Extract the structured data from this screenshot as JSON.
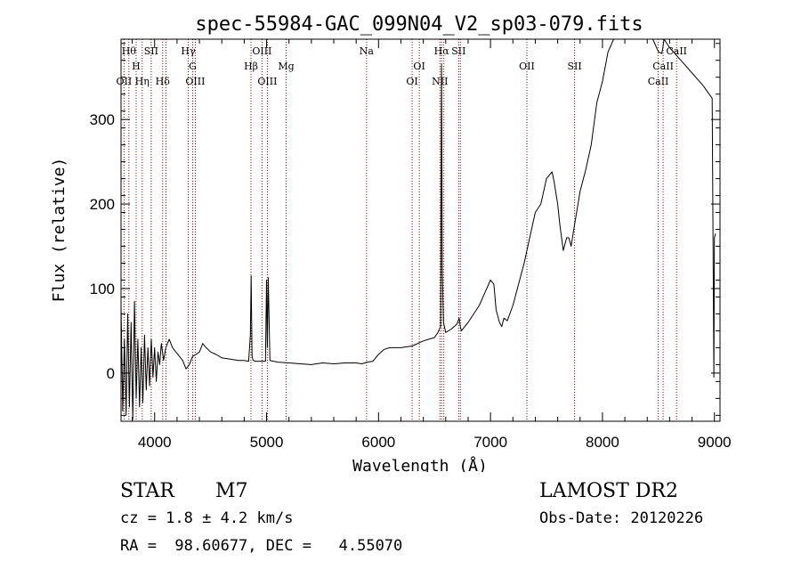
{
  "chart_data": {
    "type": "line",
    "title": "spec-55984-GAC_099N04_V2_sp03-079.fits",
    "xlabel": "Wavelength (Å)",
    "ylabel": "Flux (relative)",
    "xlim": [
      3700,
      9050
    ],
    "ylim": [
      -57,
      395
    ],
    "xticks": [
      4000,
      5000,
      6000,
      7000,
      8000,
      9000
    ],
    "yticks": [
      0,
      100,
      200,
      300
    ],
    "grid": false,
    "series": [
      {
        "x": [
          3700,
          3715,
          3730,
          3745,
          3760,
          3775,
          3790,
          3805,
          3820,
          3835,
          3850,
          3865,
          3880,
          3895,
          3910,
          3925,
          3940,
          3955,
          3970,
          3985,
          4000,
          4015,
          4030,
          4045,
          4060,
          4080,
          4100,
          4130,
          4160,
          4190,
          4220,
          4250,
          4280,
          4310,
          4340,
          4370,
          4400,
          4430,
          4460,
          4500,
          4550,
          4600,
          4650,
          4700,
          4750,
          4800,
          4840,
          4855,
          4862,
          4870,
          4880,
          4900,
          4950,
          4990,
          5000,
          5007,
          5015,
          5030,
          5100,
          5200,
          5300,
          5400,
          5500,
          5600,
          5700,
          5800,
          5850,
          5900,
          5950,
          6000,
          6050,
          6100,
          6200,
          6300,
          6400,
          6450,
          6500,
          6530,
          6555,
          6563,
          6566,
          6570,
          6580,
          6600,
          6650,
          6700,
          6720,
          6730,
          6740,
          6800,
          6900,
          6950,
          7000,
          7030,
          7050,
          7080,
          7100,
          7120,
          7150,
          7200,
          7300,
          7400,
          7450,
          7500,
          7550,
          7570,
          7600,
          7620,
          7650,
          7680,
          7700,
          7720,
          7750,
          7800,
          7850,
          7900,
          7950,
          8000,
          8050,
          8100,
          8150,
          8200,
          8300,
          8400,
          8450,
          8500,
          8530,
          8540,
          8550,
          8600,
          8700,
          8800,
          8900,
          8980,
          8995,
          9000,
          9010
        ],
        "y": [
          80,
          -45,
          40,
          -50,
          70,
          -40,
          60,
          -55,
          85,
          -30,
          40,
          -40,
          30,
          -35,
          45,
          -20,
          30,
          -15,
          40,
          -5,
          30,
          -10,
          25,
          10,
          35,
          15,
          30,
          40,
          30,
          25,
          20,
          15,
          5,
          10,
          20,
          22,
          25,
          35,
          30,
          25,
          22,
          18,
          17,
          16,
          15,
          15,
          14,
          45,
          115,
          20,
          15,
          14,
          14,
          14,
          110,
          30,
          113,
          15,
          13,
          12,
          11,
          10,
          12,
          11,
          12,
          12,
          11,
          13,
          14,
          22,
          28,
          30,
          30,
          32,
          38,
          40,
          42,
          48,
          55,
          365,
          260,
          120,
          60,
          48,
          52,
          58,
          65,
          55,
          50,
          60,
          80,
          95,
          110,
          105,
          75,
          60,
          55,
          65,
          62,
          80,
          130,
          190,
          200,
          230,
          238,
          225,
          200,
          175,
          145,
          160,
          160,
          150,
          175,
          215,
          240,
          270,
          320,
          345,
          380,
          395,
          395,
          395,
          395,
          395,
          395,
          380,
          378,
          385,
          395,
          385,
          370,
          355,
          340,
          325,
          -5,
          160,
          165
        ]
      }
    ],
    "lines": [
      {
        "x": 3770,
        "labels": [
          "Hθ"
        ],
        "row": 1
      },
      {
        "x": 3835,
        "labels": [
          "H"
        ],
        "row": 2
      },
      {
        "x": 3889,
        "labels": [
          "Hη"
        ],
        "row": 3
      },
      {
        "x": 3727,
        "labels": [
          "OII"
        ],
        "row": 3
      },
      {
        "x": 3969,
        "labels": [
          "SII"
        ],
        "row": 1
      },
      {
        "x": 4072,
        "labels": [
          "Hδ"
        ],
        "row": 3
      },
      {
        "x": 4102,
        "labels": [],
        "row": 0
      },
      {
        "x": 4300,
        "labels": [
          "Hγ"
        ],
        "row": 1
      },
      {
        "x": 4340,
        "labels": [
          "G"
        ],
        "row": 2
      },
      {
        "x": 4363,
        "labels": [
          "OIII"
        ],
        "row": 3
      },
      {
        "x": 4861,
        "labels": [
          "Hβ"
        ],
        "row": 2
      },
      {
        "x": 4959,
        "labels": [
          "OIII"
        ],
        "row": 1
      },
      {
        "x": 5007,
        "labels": [
          "OIII"
        ],
        "row": 3
      },
      {
        "x": 5175,
        "labels": [
          "Mg"
        ],
        "row": 2
      },
      {
        "x": 5893,
        "labels": [
          "Na"
        ],
        "row": 1
      },
      {
        "x": 6300,
        "labels": [
          "OI"
        ],
        "row": 3
      },
      {
        "x": 6364,
        "labels": [
          "OI"
        ],
        "row": 2
      },
      {
        "x": 6548,
        "labels": [
          "NII"
        ],
        "row": 3
      },
      {
        "x": 6563,
        "labels": [
          "Hα"
        ],
        "row": 1
      },
      {
        "x": 6583,
        "labels": [],
        "row": 0
      },
      {
        "x": 6716,
        "labels": [
          "SII"
        ],
        "row": 1
      },
      {
        "x": 6731,
        "labels": [],
        "row": 0
      },
      {
        "x": 7325,
        "labels": [
          "OII"
        ],
        "row": 2
      },
      {
        "x": 7751,
        "labels": [
          "SII"
        ],
        "row": 2
      },
      {
        "x": 8498,
        "labels": [
          "CaII"
        ],
        "row": 3
      },
      {
        "x": 8542,
        "labels": [
          "CaII"
        ],
        "row": 2
      },
      {
        "x": 8662,
        "labels": [
          "CaII"
        ],
        "row": 1
      }
    ]
  },
  "info": {
    "object_class": "STAR",
    "subclass": "M7",
    "cz": "cz = 1.8 ± 4.2 km/s",
    "coords": "RA =  98.60677, DEC =   4.55070",
    "survey": "LAMOST DR2",
    "obs_date": "Obs-Date: 20120226"
  },
  "colors": {
    "spectrum": "#000000",
    "line_markers": "#8b0000",
    "axes": "#000000"
  }
}
